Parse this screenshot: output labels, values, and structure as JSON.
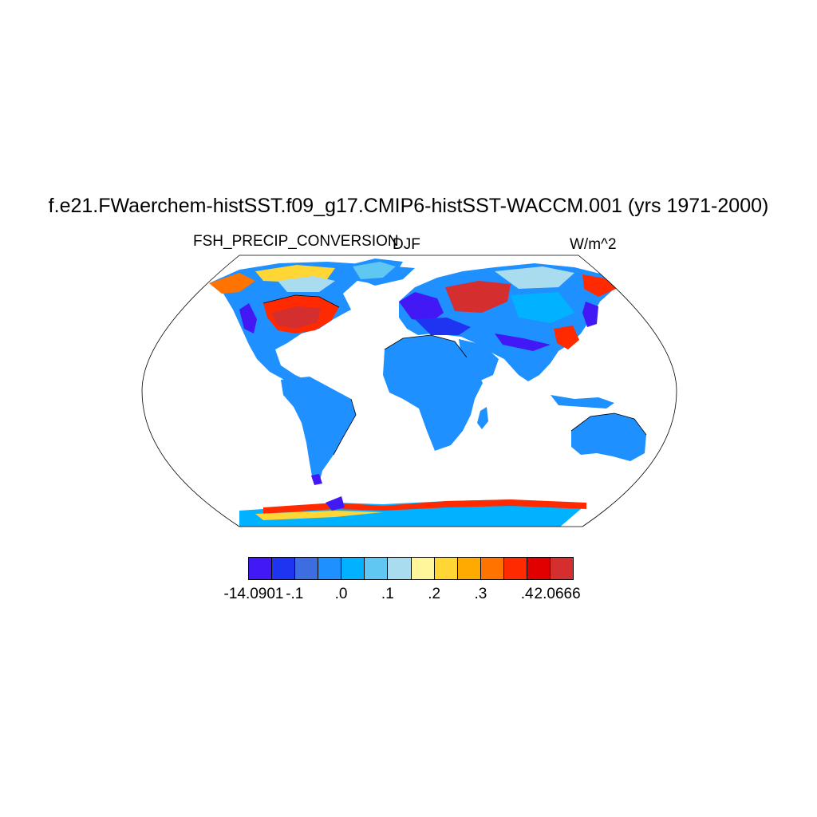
{
  "title": "f.e21.FWaerchem-histSST.f09_g17.CMIP6-histSST-WACCM.001 (yrs 1971-2000)",
  "left_label": "FSH_PRECIP_CONVERSION",
  "center_label": "DJF",
  "right_label": "W/m^2",
  "colorbar": {
    "colors": [
      "#4218f5",
      "#1e34f0",
      "#3c6ee2",
      "#1e90ff",
      "#00b2ff",
      "#60c6f2",
      "#aadcf0",
      "#fff59a",
      "#ffd633",
      "#ffaa00",
      "#ff7300",
      "#ff2a00",
      "#e00000",
      "#d42e2e"
    ],
    "tick_labels": [
      "-14.0901",
      "-.1",
      ".0",
      ".1",
      ".2",
      ".3",
      ".4",
      "2.0666"
    ]
  },
  "map": {
    "projection": "Robinson",
    "land_default_color": "#1e90ff",
    "antarctica_color": "#00b2ff",
    "ocean_color": "#ffffff"
  }
}
